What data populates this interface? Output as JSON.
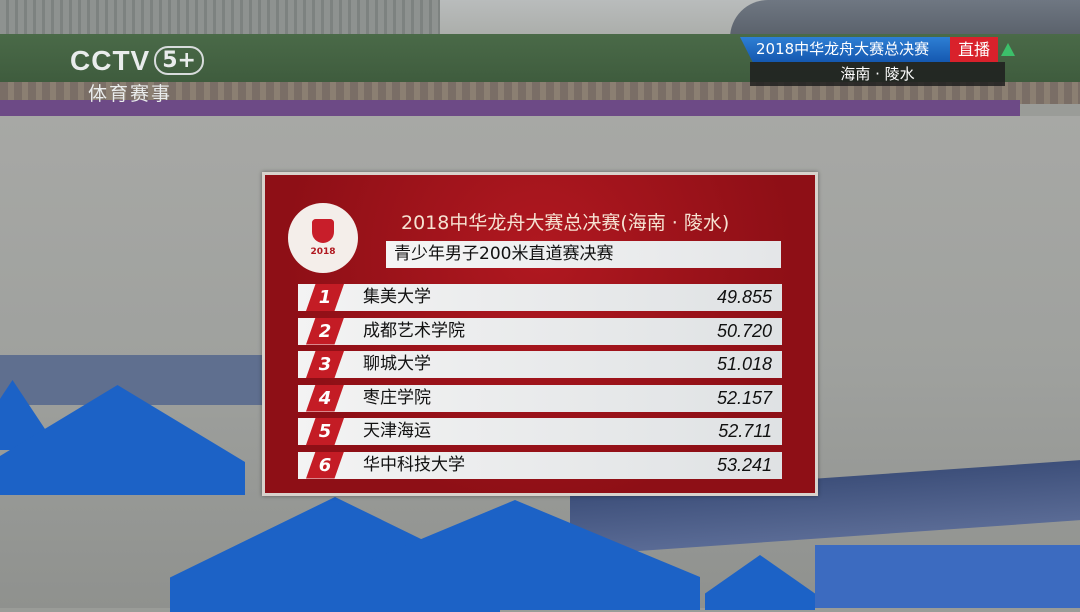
{
  "channel": {
    "logo": "CCTV",
    "number": "5+",
    "name": "体育赛事"
  },
  "live_bug": {
    "title": "2018中华龙舟大赛总决赛",
    "live_label": "直播",
    "location": "海南 · 陵水"
  },
  "results_board": {
    "title": "2018中华龙舟大赛总决赛(海南 · 陵水)",
    "event": "青少年男子200米直道赛决赛",
    "emblem_text": "2018",
    "rows": [
      {
        "rank": "1",
        "team": "集美大学",
        "time": "49.855"
      },
      {
        "rank": "2",
        "team": "成都艺术学院",
        "time": "50.720"
      },
      {
        "rank": "3",
        "team": "聊城大学",
        "time": "51.018"
      },
      {
        "rank": "4",
        "team": "枣庄学院",
        "time": "52.157"
      },
      {
        "rank": "5",
        "team": "天津海运",
        "time": "52.711"
      },
      {
        "rank": "6",
        "team": "华中科技大学",
        "time": "53.241"
      }
    ]
  },
  "colors": {
    "board_red": "#a3141c",
    "rank_red": "#c41c25",
    "live_red": "#d9212b",
    "bug_blue": "#1f6cc4"
  }
}
